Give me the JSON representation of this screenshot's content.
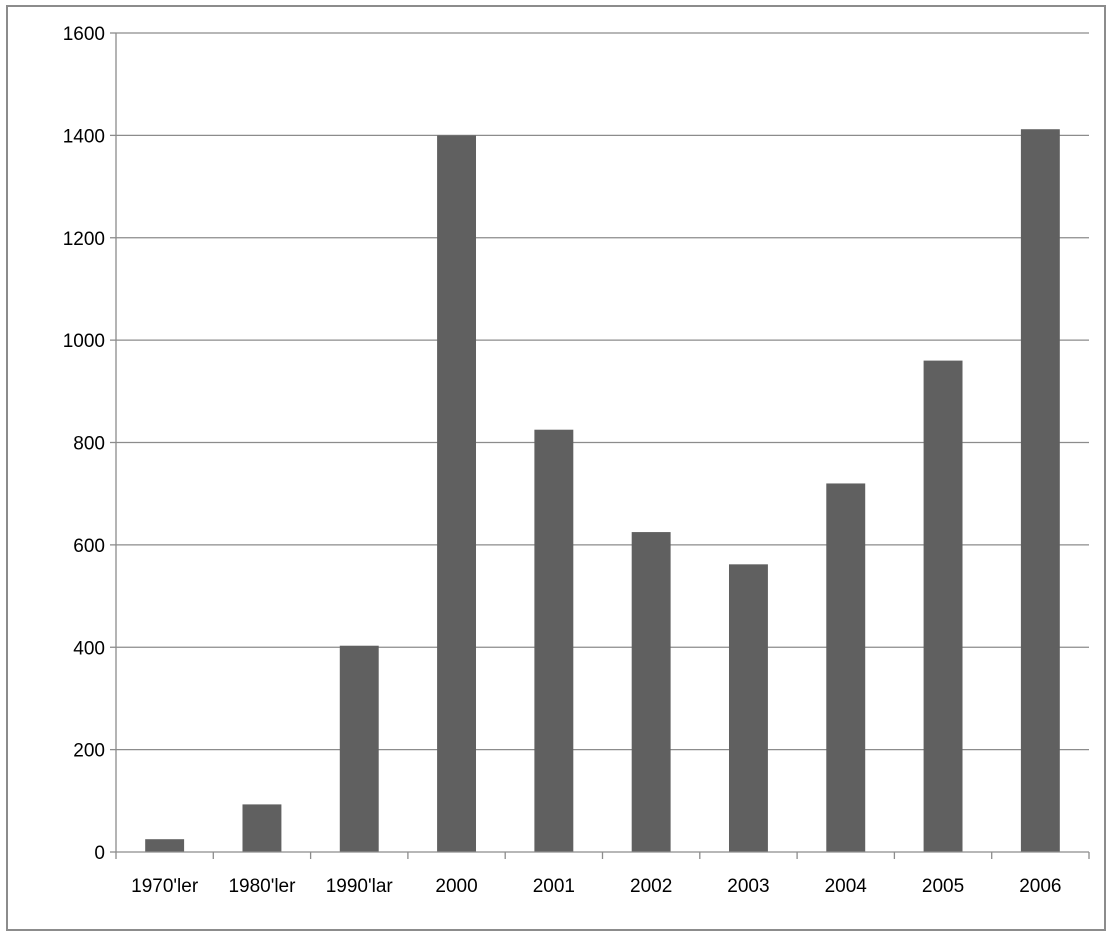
{
  "chart_data": {
    "type": "bar",
    "title": "",
    "xlabel": "",
    "ylabel": "",
    "categories": [
      "1970'ler",
      "1980'ler",
      "1990'lar",
      "2000",
      "2001",
      "2002",
      "2003",
      "2004",
      "2005",
      "2006"
    ],
    "values": [
      25,
      93,
      403,
      1400,
      825,
      625,
      562,
      720,
      960,
      1412
    ],
    "ylim": [
      0,
      1600
    ],
    "yticks": [
      "0",
      "200",
      "400",
      "600",
      "800",
      "1000",
      "1200",
      "1400",
      "1600"
    ],
    "grid": true,
    "legend": "none",
    "bar_color": "#606060",
    "grid_color": "#8c8c8c"
  }
}
